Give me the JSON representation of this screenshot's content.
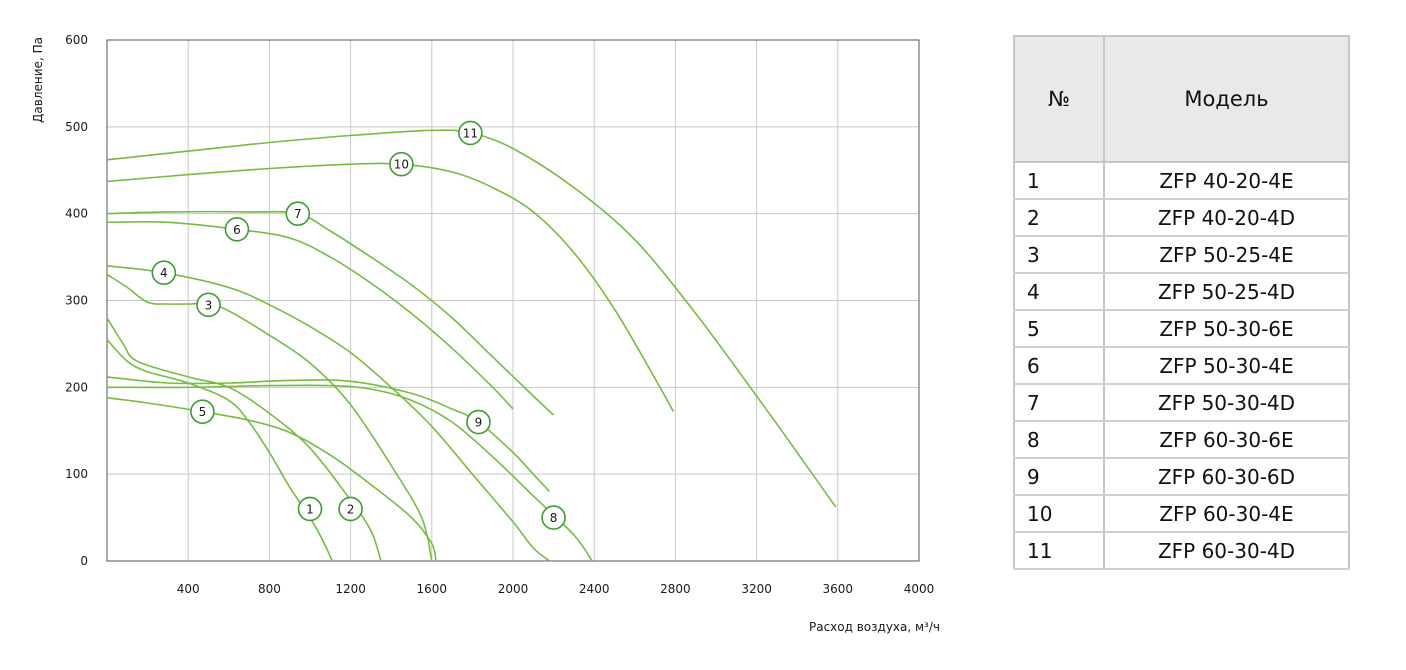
{
  "chart_data": {
    "type": "line",
    "xlabel": "Расход воздуха, м³/ч",
    "ylabel": "Давление, Па",
    "xlim": [
      0,
      4000
    ],
    "ylim": [
      0,
      600
    ],
    "x_ticks": [
      "400",
      "800",
      "1200",
      "1600",
      "2000",
      "2400",
      "2800",
      "3200",
      "3600",
      "4000"
    ],
    "y_ticks": [
      "0",
      "100",
      "200",
      "300",
      "400",
      "500",
      "600"
    ],
    "grid": true,
    "line_color": "#76bc43",
    "series": [
      {
        "label": "1",
        "label_at": [
          1000,
          60
        ],
        "points": [
          [
            0,
            255
          ],
          [
            100,
            230
          ],
          [
            200,
            218
          ],
          [
            400,
            205
          ],
          [
            600,
            185
          ],
          [
            700,
            160
          ],
          [
            800,
            125
          ],
          [
            900,
            85
          ],
          [
            1000,
            50
          ],
          [
            1060,
            25
          ],
          [
            1110,
            0
          ]
        ]
      },
      {
        "label": "2",
        "label_at": [
          1200,
          60
        ],
        "points": [
          [
            0,
            280
          ],
          [
            80,
            250
          ],
          [
            150,
            230
          ],
          [
            400,
            212
          ],
          [
            600,
            200
          ],
          [
            800,
            170
          ],
          [
            1000,
            130
          ],
          [
            1200,
            70
          ],
          [
            1300,
            35
          ],
          [
            1350,
            0
          ]
        ]
      },
      {
        "label": "3",
        "label_at": [
          500,
          295
        ],
        "points": [
          [
            0,
            330
          ],
          [
            100,
            315
          ],
          [
            200,
            298
          ],
          [
            300,
            296
          ],
          [
            400,
            296
          ],
          [
            500,
            296
          ],
          [
            600,
            288
          ],
          [
            800,
            260
          ],
          [
            1000,
            228
          ],
          [
            1200,
            180
          ],
          [
            1400,
            110
          ],
          [
            1550,
            50
          ],
          [
            1600,
            0
          ]
        ]
      },
      {
        "label": "4",
        "label_at": [
          280,
          332
        ],
        "points": [
          [
            0,
            340
          ],
          [
            280,
            332
          ],
          [
            600,
            315
          ],
          [
            800,
            295
          ],
          [
            1000,
            270
          ],
          [
            1200,
            240
          ],
          [
            1400,
            200
          ],
          [
            1600,
            155
          ],
          [
            1800,
            100
          ],
          [
            2000,
            45
          ],
          [
            2100,
            15
          ],
          [
            2180,
            0
          ]
        ]
      },
      {
        "label": "5",
        "label_at": [
          470,
          172
        ],
        "points": [
          [
            0,
            188
          ],
          [
            200,
            182
          ],
          [
            470,
            172
          ],
          [
            700,
            162
          ],
          [
            900,
            148
          ],
          [
            1100,
            122
          ],
          [
            1300,
            88
          ],
          [
            1500,
            50
          ],
          [
            1600,
            20
          ],
          [
            1620,
            0
          ]
        ]
      },
      {
        "label": "6",
        "label_at": [
          640,
          382
        ],
        "points": [
          [
            0,
            390
          ],
          [
            300,
            390
          ],
          [
            640,
            382
          ],
          [
            900,
            372
          ],
          [
            1100,
            350
          ],
          [
            1300,
            320
          ],
          [
            1500,
            285
          ],
          [
            1700,
            245
          ],
          [
            1900,
            200
          ],
          [
            2000,
            175
          ]
        ]
      },
      {
        "label": "7",
        "label_at": [
          940,
          400
        ],
        "points": [
          [
            0,
            400
          ],
          [
            300,
            402
          ],
          [
            700,
            402
          ],
          [
            940,
            400
          ],
          [
            1100,
            380
          ],
          [
            1300,
            350
          ],
          [
            1500,
            318
          ],
          [
            1700,
            280
          ],
          [
            1900,
            235
          ],
          [
            2100,
            190
          ],
          [
            2200,
            168
          ]
        ]
      },
      {
        "label": "8",
        "label_at": [
          2200,
          50
        ],
        "points": [
          [
            0,
            200
          ],
          [
            400,
            200
          ],
          [
            800,
            202
          ],
          [
            1100,
            202
          ],
          [
            1300,
            198
          ],
          [
            1500,
            185
          ],
          [
            1700,
            160
          ],
          [
            1900,
            120
          ],
          [
            2100,
            75
          ],
          [
            2300,
            30
          ],
          [
            2390,
            0
          ]
        ]
      },
      {
        "label": "9",
        "label_at": [
          1830,
          160
        ],
        "points": [
          [
            0,
            212
          ],
          [
            300,
            205
          ],
          [
            600,
            205
          ],
          [
            900,
            208
          ],
          [
            1200,
            207
          ],
          [
            1500,
            193
          ],
          [
            1700,
            175
          ],
          [
            1830,
            160
          ],
          [
            2000,
            125
          ],
          [
            2100,
            100
          ],
          [
            2180,
            80
          ]
        ]
      },
      {
        "label": "10",
        "label_at": [
          1450,
          457
        ],
        "points": [
          [
            0,
            437
          ],
          [
            400,
            445
          ],
          [
            800,
            452
          ],
          [
            1200,
            457
          ],
          [
            1450,
            457
          ],
          [
            1700,
            448
          ],
          [
            1900,
            430
          ],
          [
            2100,
            402
          ],
          [
            2300,
            355
          ],
          [
            2500,
            290
          ],
          [
            2700,
            210
          ],
          [
            2790,
            172
          ]
        ]
      },
      {
        "label": "11",
        "label_at": [
          1790,
          493
        ],
        "points": [
          [
            0,
            462
          ],
          [
            400,
            472
          ],
          [
            800,
            482
          ],
          [
            1200,
            490
          ],
          [
            1600,
            496
          ],
          [
            1790,
            493
          ],
          [
            2000,
            475
          ],
          [
            2300,
            430
          ],
          [
            2600,
            370
          ],
          [
            2900,
            285
          ],
          [
            3200,
            190
          ],
          [
            3400,
            125
          ],
          [
            3590,
            62
          ]
        ]
      }
    ]
  },
  "table": {
    "header": {
      "num": "№",
      "model": "Модель"
    },
    "rows": [
      {
        "num": "1",
        "model": "ZFP 40-20-4E"
      },
      {
        "num": "2",
        "model": "ZFP 40-20-4D"
      },
      {
        "num": "3",
        "model": "ZFP 50-25-4E"
      },
      {
        "num": "4",
        "model": "ZFP 50-25-4D"
      },
      {
        "num": "5",
        "model": "ZFP 50-30-6E"
      },
      {
        "num": "6",
        "model": "ZFP 50-30-4E"
      },
      {
        "num": "7",
        "model": "ZFP 50-30-4D"
      },
      {
        "num": "8",
        "model": "ZFP 60-30-6E"
      },
      {
        "num": "9",
        "model": "ZFP 60-30-6D"
      },
      {
        "num": "10",
        "model": "ZFP 60-30-4E"
      },
      {
        "num": "11",
        "model": "ZFP 60-30-4D"
      }
    ]
  }
}
